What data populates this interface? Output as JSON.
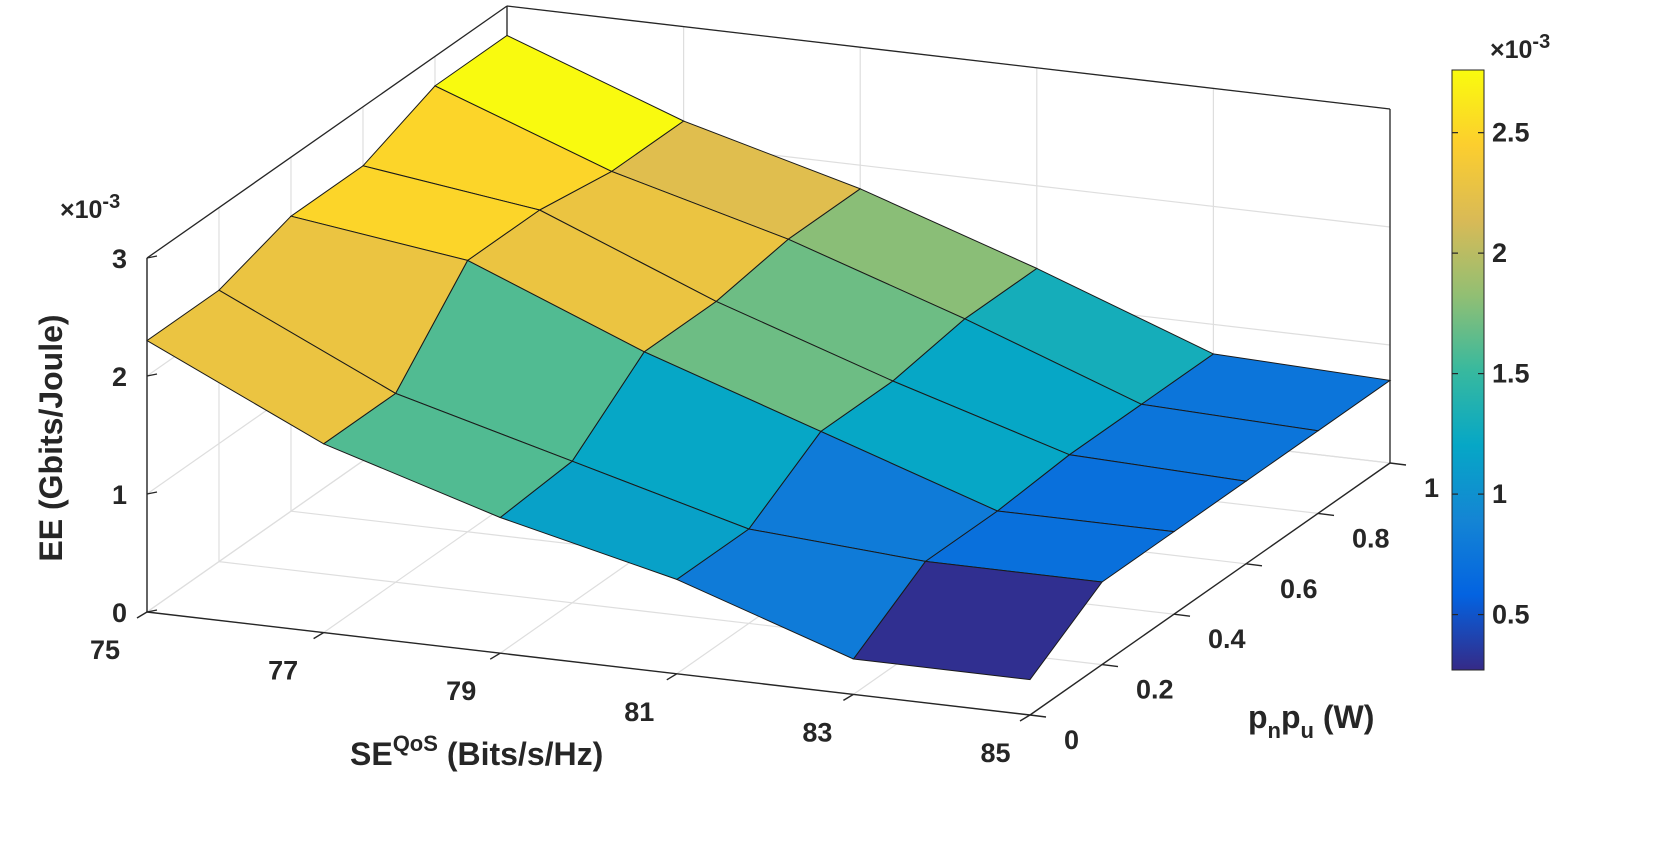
{
  "chart_data": {
    "type": "surface",
    "title": "",
    "xlabel": "SE",
    "xlabel_sup": "QoS",
    "xlabel_unit": " (Bits/s/Hz)",
    "ylabel_p1": "p",
    "ylabel_s1": "n",
    "ylabel_p2": "p",
    "ylabel_s2": "u",
    "ylabel_unit": " (W)",
    "zlabel": "EE (Gbits/Joule)",
    "z_exponent_prefix": "×10",
    "z_exponent": "-3",
    "colorbar_exponent_prefix": "×10",
    "colorbar_exponent": "-3",
    "x_ticks": [
      "75",
      "77",
      "79",
      "81",
      "83",
      "85"
    ],
    "y_ticks": [
      "0",
      "0.2",
      "0.4",
      "0.6",
      "0.8",
      "1"
    ],
    "z_ticks": [
      "0",
      "1",
      "2",
      "3"
    ],
    "colorbar_ticks": [
      "0.5",
      "1",
      "1.5",
      "2",
      "2.5"
    ],
    "xlim": [
      75,
      85
    ],
    "ylim": [
      0,
      1
    ],
    "zlim": [
      0,
      3
    ],
    "clim": [
      0.27,
      2.76
    ],
    "colormap": "parula",
    "grid": true,
    "x": [
      75,
      77,
      79,
      81,
      83,
      85
    ],
    "y": [
      0,
      0.2,
      0.4,
      0.6,
      0.8,
      1
    ],
    "z": [
      [
        2.3,
        1.6,
        1.15,
        0.8,
        0.3,
        0.3
      ],
      [
        2.3,
        1.6,
        1.2,
        0.8,
        0.7,
        0.7
      ],
      [
        2.5,
        2.3,
        1.7,
        1.2,
        0.7,
        0.7
      ],
      [
        2.5,
        2.3,
        1.7,
        1.2,
        0.75,
        0.7
      ],
      [
        2.75,
        2.2,
        1.8,
        1.3,
        0.75,
        0.7
      ],
      [
        2.75,
        2.2,
        1.8,
        1.3,
        0.75,
        0.7
      ]
    ]
  }
}
